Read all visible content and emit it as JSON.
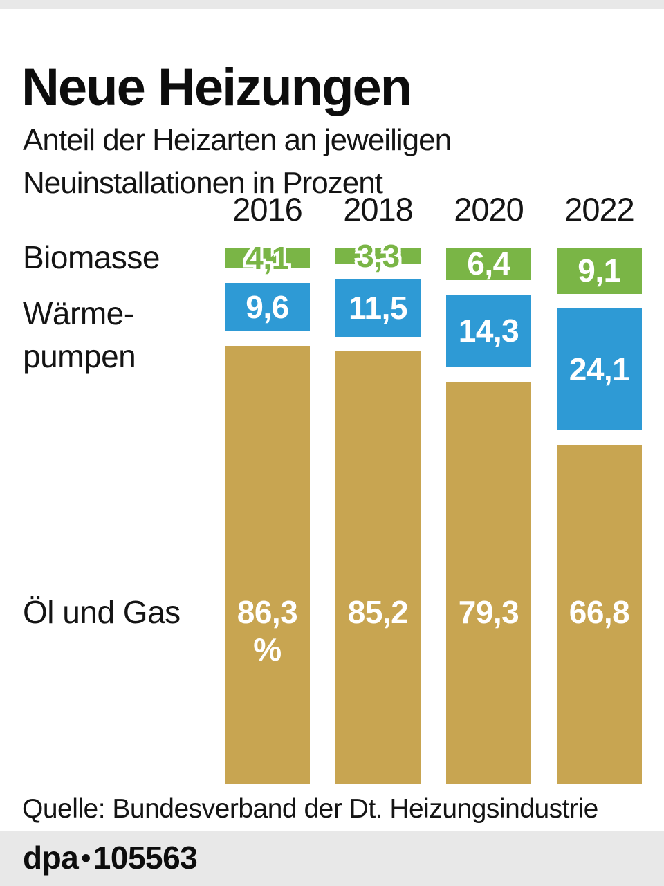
{
  "header": {
    "title": "Neue Heizungen",
    "subtitle": "Anteil der Heizarten an jeweiligen\nNeuinstallationen in Prozent"
  },
  "chart_data": {
    "type": "bar",
    "subtype": "stacked-columns",
    "title": "Neue Heizungen",
    "subtitle": "Anteil der Heizarten an jeweiligen Neuinstallationen in Prozent",
    "unit": "Prozent",
    "categories": [
      "2016",
      "2018",
      "2020",
      "2022"
    ],
    "series": [
      {
        "name": "Biomasse",
        "color": "#7ab546",
        "values": [
          4.1,
          3.3,
          6.4,
          9.1
        ],
        "values_display": [
          "4,1",
          "3,3",
          "6,4",
          "9,1"
        ]
      },
      {
        "name": "Wärmepumpen",
        "color": "#2e9ad5",
        "values": [
          9.6,
          11.5,
          14.3,
          24.1
        ],
        "values_display": [
          "9,6",
          "11,5",
          "14,3",
          "24,1"
        ]
      },
      {
        "name": "Öl und Gas",
        "color": "#c8a551",
        "values": [
          86.3,
          85.2,
          79.3,
          66.8
        ],
        "values_display": [
          "86,3",
          "85,2",
          "79,3",
          "66,8"
        ],
        "unit_suffix_first": "%"
      }
    ],
    "row_labels": [
      "Biomasse",
      "Wärme-\npumpen",
      "Öl und Gas"
    ],
    "ylim": [
      0,
      100
    ],
    "grid": false,
    "legend_position": "left-row-labels"
  },
  "source": "Quelle: Bundesverband der Dt. Heizungsindustrie",
  "footer": {
    "brand": "dpa",
    "separator": "•",
    "id": "105563"
  },
  "colors": {
    "strip_gray": "#e8e8e8",
    "text_black": "#121212",
    "background": "#ffffff"
  }
}
